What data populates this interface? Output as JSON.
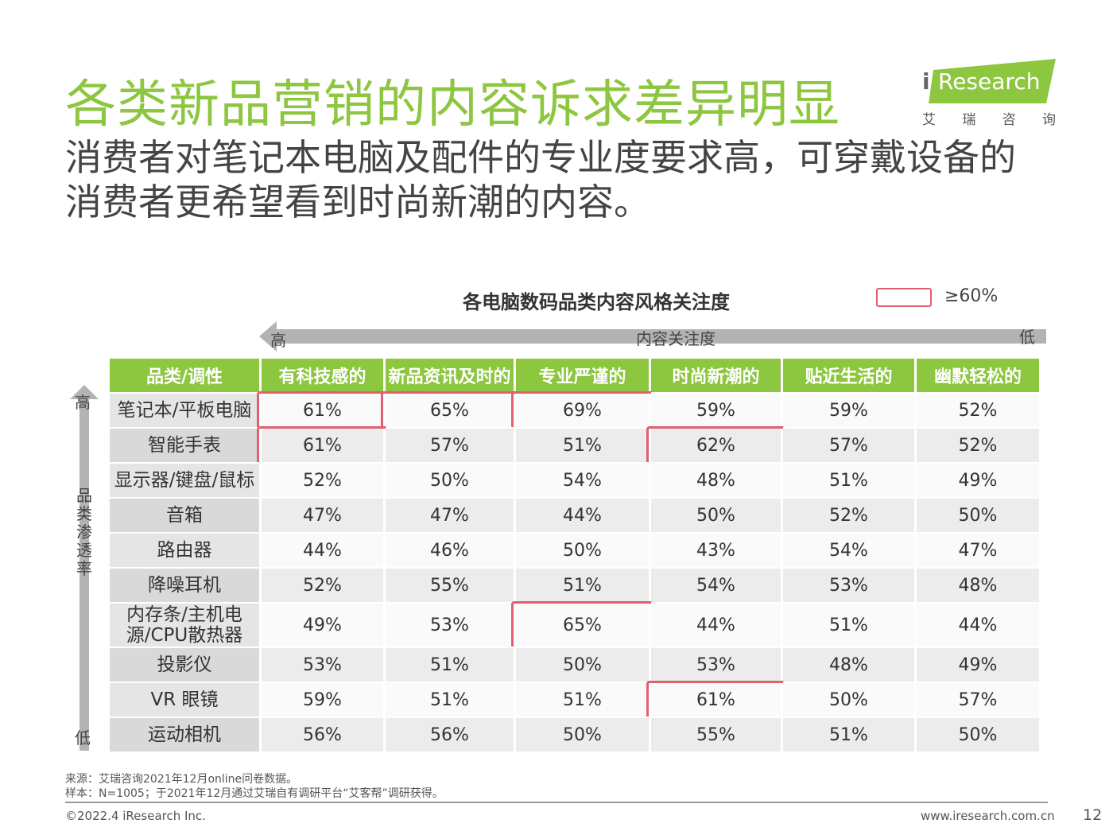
{
  "page": {
    "title": "各类新品营销的内容诉求差异明显",
    "subtitle": "消费者对笔记本电脑及配件的专业度要求高，可穿戴设备的消费者更希望看到时尚新潮的内容。",
    "logo": {
      "brand": "Research",
      "brand_i": "i",
      "sub": [
        "艾",
        "瑞",
        "咨",
        "询"
      ]
    },
    "source": "来源：艾瑞咨询2021年12月online问卷数据。",
    "sample": "样本：N=1005；于2021年12月通过艾瑞自有调研平台“艾客帮”调研获得。",
    "copyright": "©2022.4 iResearch Inc.",
    "website": "www.iresearch.com.cn",
    "page_number": "12"
  },
  "colors": {
    "accent": "#8dc63f",
    "highlight": "#e06070",
    "axis": "#b3b3b3"
  },
  "chart_data": {
    "type": "table",
    "title": "各电脑数码品类内容风格关注度",
    "legend": {
      "label": "≥60%",
      "threshold": 60
    },
    "top_axis": {
      "high": "高",
      "label": "内容关注度",
      "low": "低"
    },
    "left_axis": {
      "high": "高",
      "label": "品类渗透率",
      "low": "低"
    },
    "header_first": "品类/调性",
    "columns": [
      "有科技感的",
      "新品资讯及时的",
      "专业严谨的",
      "时尚新潮的",
      "贴近生活的",
      "幽默轻松的"
    ],
    "rows": [
      {
        "name": "笔记本/平板电脑",
        "values": [
          61,
          65,
          69,
          59,
          59,
          52
        ]
      },
      {
        "name": "智能手表",
        "values": [
          61,
          57,
          51,
          62,
          57,
          52
        ]
      },
      {
        "name": "显示器/键盘/鼠标",
        "values": [
          52,
          50,
          54,
          48,
          51,
          49
        ]
      },
      {
        "name": "音箱",
        "values": [
          47,
          47,
          44,
          50,
          52,
          50
        ]
      },
      {
        "name": "路由器",
        "values": [
          44,
          46,
          50,
          43,
          54,
          47
        ]
      },
      {
        "name": "降噪耳机",
        "values": [
          52,
          55,
          51,
          54,
          53,
          48
        ]
      },
      {
        "name": "内存条/主机电源/CPU散热器",
        "values": [
          49,
          53,
          65,
          44,
          51,
          44
        ]
      },
      {
        "name": "投影仪",
        "values": [
          53,
          51,
          50,
          53,
          48,
          49
        ]
      },
      {
        "name": "VR 眼镜",
        "values": [
          59,
          51,
          51,
          61,
          50,
          57
        ]
      },
      {
        "name": "运动相机",
        "values": [
          56,
          56,
          50,
          55,
          51,
          50
        ]
      }
    ],
    "unit": "%"
  }
}
